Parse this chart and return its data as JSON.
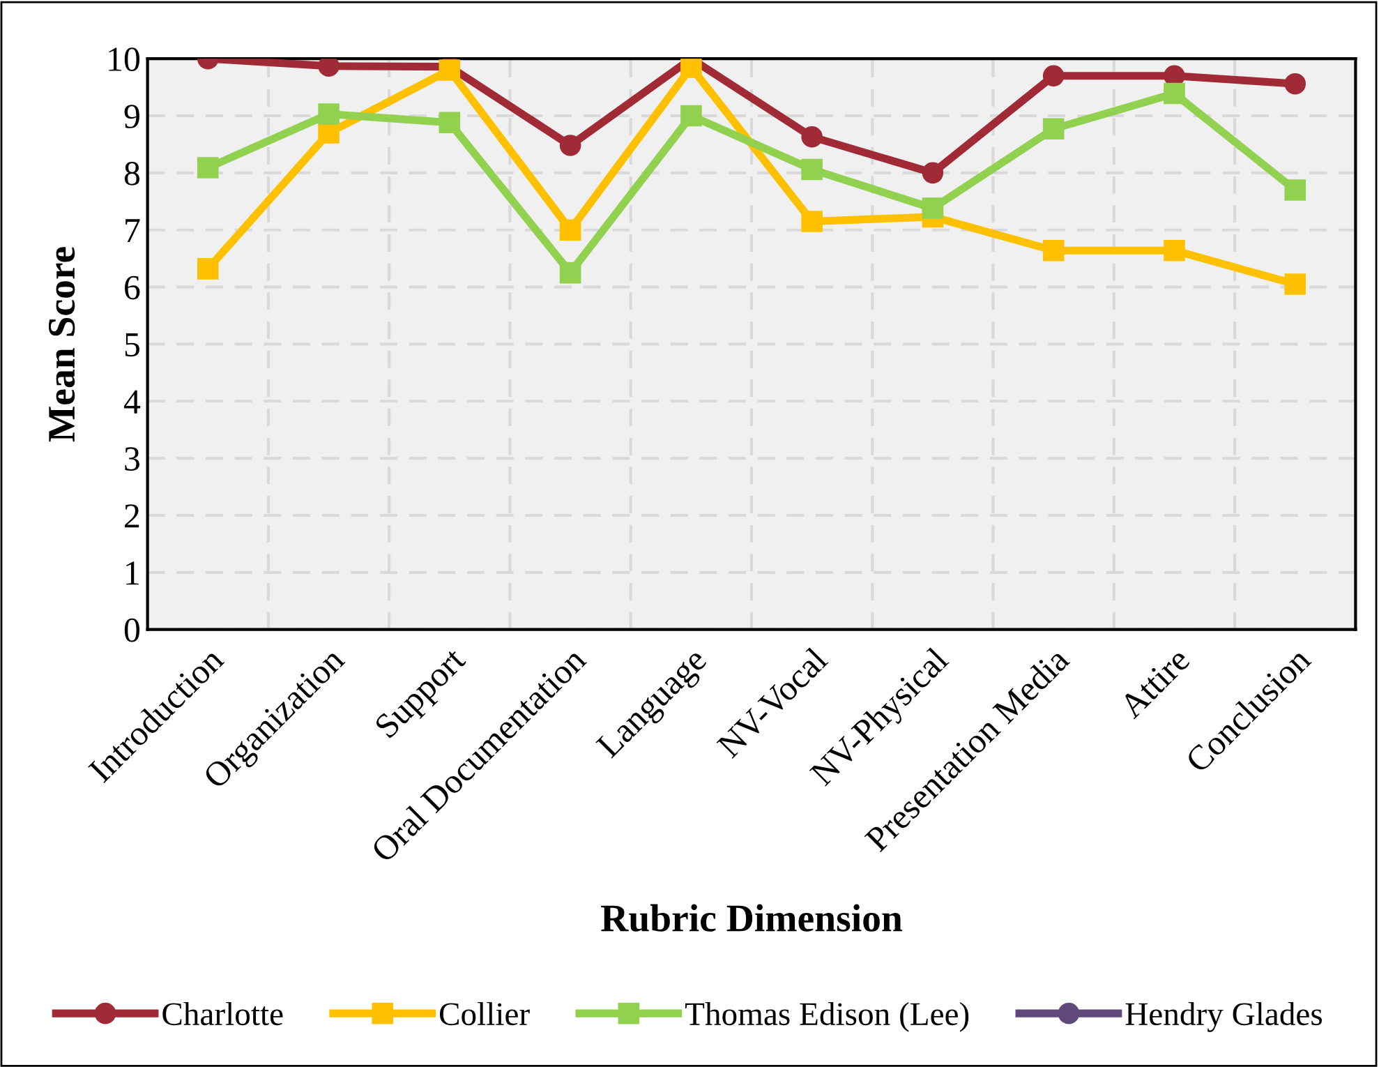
{
  "chart_data": {
    "type": "line",
    "xlabel": "Rubric Dimension",
    "ylabel": "Mean Score",
    "categories": [
      "Introduction",
      "Organization",
      "Support",
      "Oral Documentation",
      "Language",
      "NV-Vocal",
      "NV-Physical",
      "Presentation Media",
      "Attire",
      "Conclusion"
    ],
    "series": [
      {
        "name": "Charlotte",
        "color": "#a02b37",
        "marker": "circle",
        "values": [
          10,
          9.87,
          9.86,
          8.48,
          10,
          8.63,
          8.0,
          9.7,
          9.7,
          9.56
        ]
      },
      {
        "name": "Collier",
        "color": "#ffc000",
        "marker": "square",
        "values": [
          6.32,
          8.7,
          9.8,
          7.0,
          9.85,
          7.15,
          7.23,
          6.64,
          6.64,
          6.05
        ]
      },
      {
        "name": "Thomas Edison (Lee)",
        "color": "#92d050",
        "marker": "square",
        "values": [
          8.09,
          9.03,
          8.88,
          6.25,
          9.0,
          8.06,
          7.38,
          8.77,
          9.39,
          7.7
        ]
      },
      {
        "name": "Hendry Glades",
        "color": "#5f497a",
        "marker": "circle",
        "values": [
          null,
          null,
          null,
          null,
          null,
          null,
          null,
          null,
          null,
          null
        ]
      }
    ],
    "ylim": [
      0,
      10
    ],
    "yticks": [
      0,
      1,
      2,
      3,
      4,
      5,
      6,
      7,
      8,
      9,
      10
    ],
    "grid": true,
    "legend": "bottom",
    "line_style": "solid"
  }
}
